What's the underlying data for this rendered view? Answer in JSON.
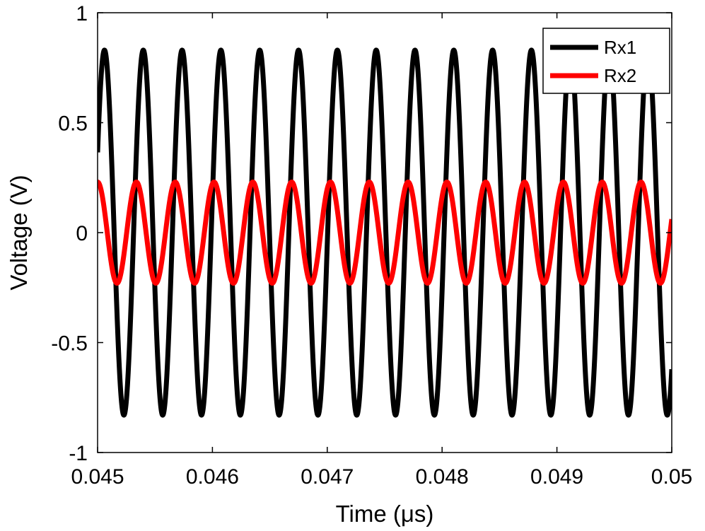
{
  "chart_data": {
    "type": "line",
    "xlabel": "Time (μs)",
    "ylabel": "Voltage (V)",
    "xlim": [
      0.045,
      0.05
    ],
    "ylim": [
      -1,
      1
    ],
    "xticks": [
      0.045,
      0.046,
      0.047,
      0.048,
      0.049,
      0.05
    ],
    "xtick_labels": [
      "0.045",
      "0.046",
      "0.047",
      "0.048",
      "0.049",
      "0.05"
    ],
    "yticks": [
      -1,
      -0.5,
      0,
      0.5,
      1
    ],
    "ytick_labels": [
      "-1",
      "-0.5",
      "0",
      "0.5",
      "1"
    ],
    "grid": false,
    "legend_position": "top-right",
    "series": [
      {
        "name": "Rx1",
        "color": "#000000",
        "waveform": "sinusoid",
        "amplitude": 0.83,
        "period_us": 0.000338,
        "peak_times_us": [
          0.04506,
          0.0454,
          0.04574,
          0.04608,
          0.04641,
          0.04675,
          0.04709,
          0.04743,
          0.04777,
          0.04811,
          0.04844,
          0.04878,
          0.04912,
          0.04946,
          0.0498
        ],
        "value_at_start": 0.25
      },
      {
        "name": "Rx2",
        "color": "#ff0000",
        "waveform": "sinusoid",
        "amplitude": 0.23,
        "period_us": 0.000338,
        "peak_times_us": [
          0.045,
          0.04534,
          0.04568,
          0.04602,
          0.04635,
          0.04669,
          0.04703,
          0.04737,
          0.04771,
          0.04804,
          0.04838,
          0.04872,
          0.04906,
          0.0494,
          0.04973
        ],
        "value_at_start": 0.23
      }
    ]
  }
}
